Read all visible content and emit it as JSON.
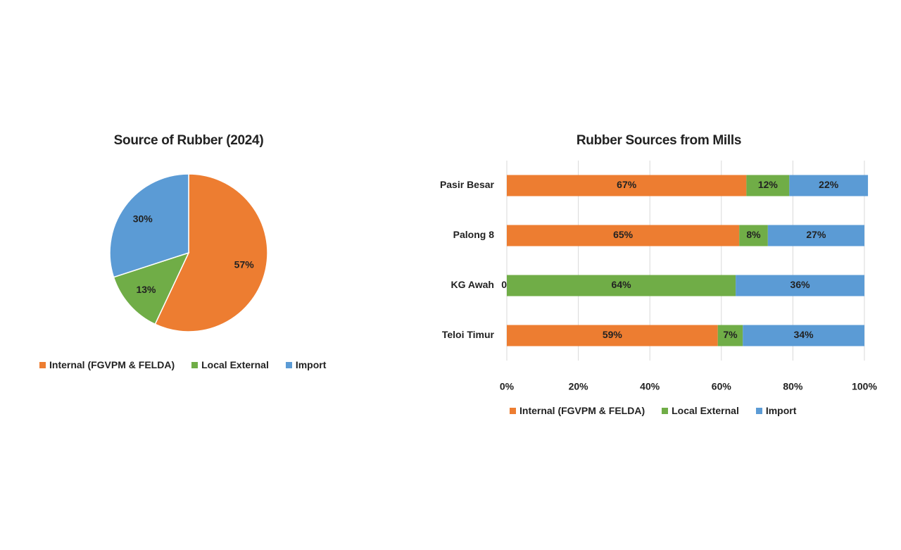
{
  "colors": {
    "internal": "#ED7D31",
    "local": "#70AD47",
    "import": "#5B9BD5",
    "grid": "#D9D9D9"
  },
  "chart_data": [
    {
      "type": "pie",
      "title": "Source of Rubber (2024)",
      "categories": [
        "Internal (FGVPM & FELDA)",
        "Local External",
        "Import"
      ],
      "values": [
        57,
        13,
        30
      ],
      "data_labels": [
        "57%",
        "13%",
        "30%"
      ],
      "legend": "bottom"
    },
    {
      "type": "bar",
      "orientation": "horizontal",
      "stacked": "percent",
      "title": "Rubber Sources from Mills",
      "categories": [
        "Pasir Besar",
        "Palong 8",
        "KG Awah",
        "Teloi Timur"
      ],
      "series": [
        {
          "name": "Internal (FGVPM & FELDA)",
          "values": [
            67,
            65,
            0,
            59
          ],
          "labels": [
            "67%",
            "65%",
            "0",
            "59%"
          ]
        },
        {
          "name": "Local External",
          "values": [
            12,
            8,
            64,
            7
          ],
          "labels": [
            "12%",
            "8%",
            "64%",
            "7%"
          ]
        },
        {
          "name": "Import",
          "values": [
            22,
            27,
            36,
            34
          ],
          "labels": [
            "22%",
            "27%",
            "36%",
            "34%"
          ]
        }
      ],
      "xticks": [
        "0%",
        "20%",
        "40%",
        "60%",
        "80%",
        "100%"
      ],
      "xlim": [
        0,
        100
      ],
      "grid": true,
      "legend": "bottom"
    }
  ]
}
